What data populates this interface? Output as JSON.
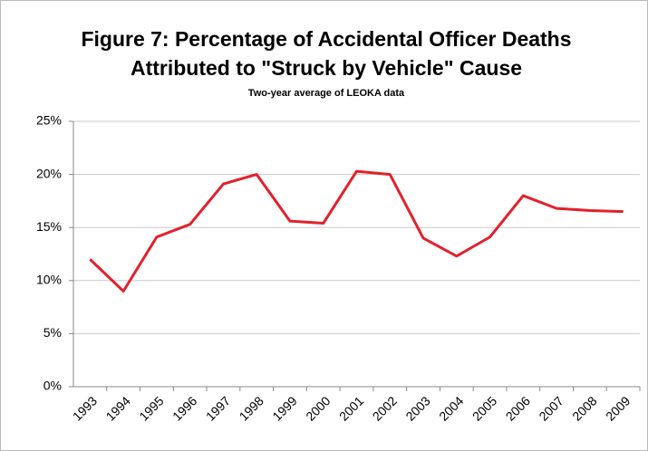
{
  "chart_data": {
    "type": "line",
    "title": [
      "Figure 7:  Percentage of Accidental Officer Deaths",
      "Attributed to \"Struck by Vehicle\" Cause"
    ],
    "subtitle": "Two-year average of LEOKA data",
    "categories": [
      "1993",
      "1994",
      "1995",
      "1996",
      "1997",
      "1998",
      "1999",
      "2000",
      "2001",
      "2002",
      "2003",
      "2004",
      "2005",
      "2006",
      "2007",
      "2008",
      "2009"
    ],
    "series": [
      {
        "name": "Struck by Vehicle",
        "color": "#e3202a",
        "values": [
          12,
          9,
          14.1,
          15.3,
          19.1,
          20,
          15.6,
          15.4,
          20.3,
          20,
          14,
          12.3,
          14.1,
          18,
          16.8,
          16.6,
          16.5
        ]
      }
    ],
    "ylim": [
      0,
      25
    ],
    "yticks": [
      {
        "value": 0,
        "label": "0%"
      },
      {
        "value": 5,
        "label": "5%"
      },
      {
        "value": 10,
        "label": "10%"
      },
      {
        "value": 15,
        "label": "15%"
      },
      {
        "value": 20,
        "label": "20%"
      },
      {
        "value": 25,
        "label": "25%"
      }
    ],
    "grid": true
  }
}
